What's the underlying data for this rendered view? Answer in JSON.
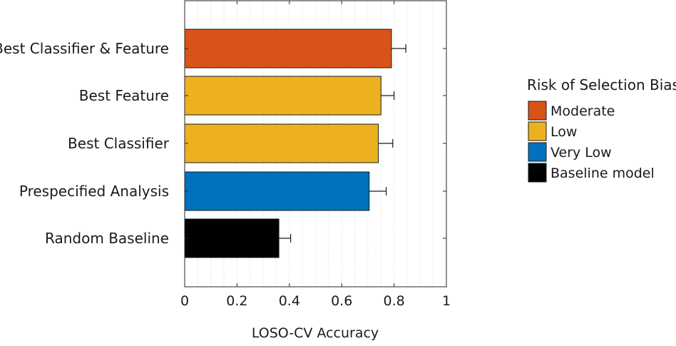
{
  "chart_data": {
    "type": "bar",
    "orientation": "horizontal",
    "title": "",
    "xlabel": "LOSO-CV Accuracy",
    "ylabel": "",
    "xlim": [
      0,
      1
    ],
    "xticks": [
      0,
      0.2,
      0.4,
      0.6,
      0.8,
      1
    ],
    "xtick_labels": [
      "0",
      "0.2",
      "0.4",
      "0.6",
      "0.8",
      "1"
    ],
    "grid": "vertical dotted minor gridlines",
    "legend_placement": "right",
    "categories": [
      "Best Classifier & Feature",
      "Best Feature",
      "Best Classifier",
      "Prespecified Analysis",
      "Random Baseline"
    ],
    "values": [
      0.79,
      0.75,
      0.74,
      0.705,
      0.36
    ],
    "errors": [
      0.055,
      0.05,
      0.055,
      0.065,
      0.045
    ],
    "bar_groups": [
      "Moderate",
      "Low",
      "Low",
      "Very Low",
      "Baseline model"
    ],
    "legend": {
      "title": "Risk of Selection Bias",
      "entries": [
        {
          "label": "Moderate",
          "color": "#D95319"
        },
        {
          "label": "Low",
          "color": "#EDB120"
        },
        {
          "label": "Very Low",
          "color": "#0072BD"
        },
        {
          "label": "Baseline model",
          "color": "#000000"
        }
      ]
    }
  }
}
